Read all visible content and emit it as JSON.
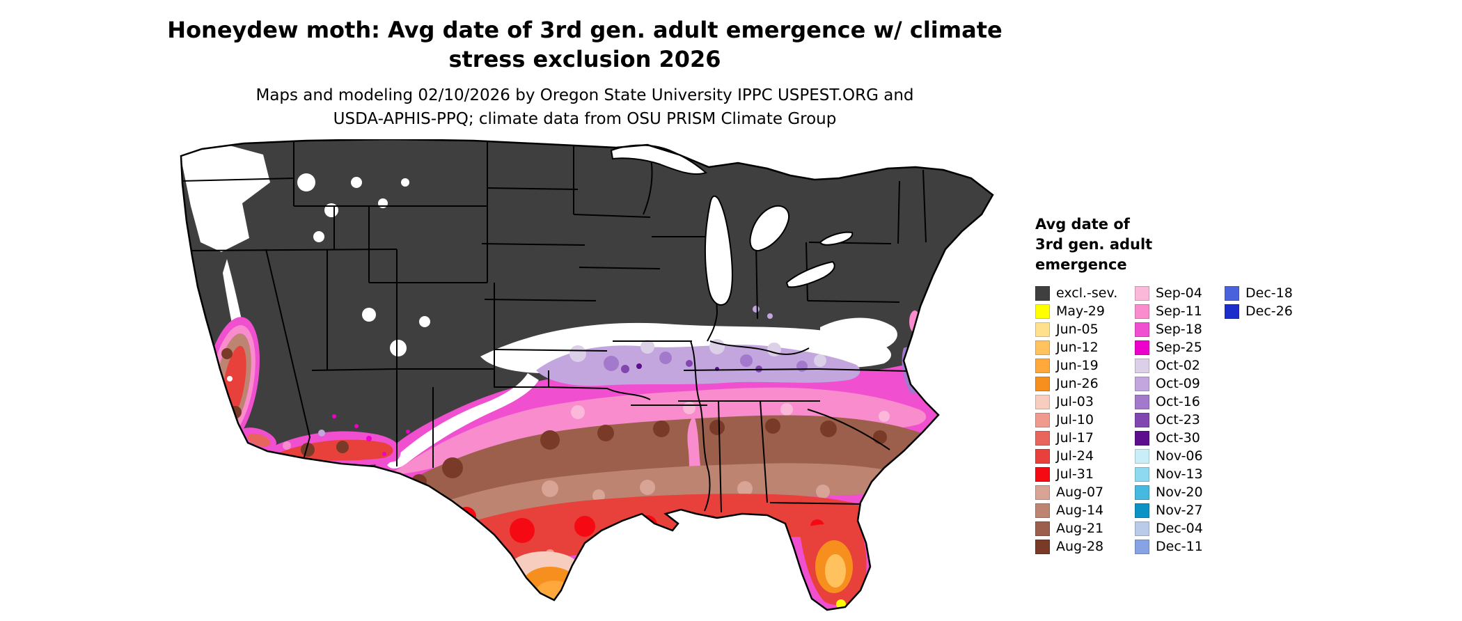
{
  "title": {
    "lines": [
      "Honeydew moth: Avg date of 3rd gen. adult emergence w/ climate",
      "stress exclusion 2026"
    ]
  },
  "subtitle": {
    "lines": [
      "Maps and modeling 02/10/2026 by Oregon State University IPPC USPEST.ORG and",
      "USDA-APHIS-PPQ; climate data from OSU PRISM Climate Group"
    ]
  },
  "legend": {
    "title_lines": [
      "Avg date of",
      "3rd gen. adult",
      "emergence"
    ],
    "columns": [
      [
        {
          "label": "excl.-sev.",
          "color": "#3f3f3f"
        },
        {
          "label": "May-29",
          "color": "#ffff00"
        },
        {
          "label": "Jun-05",
          "color": "#ffe08c"
        },
        {
          "label": "Jun-12",
          "color": "#ffc25e"
        },
        {
          "label": "Jun-19",
          "color": "#ffa93d"
        },
        {
          "label": "Jun-26",
          "color": "#f78f1e"
        },
        {
          "label": "Jul-03",
          "color": "#f6cdbf"
        },
        {
          "label": "Jul-10",
          "color": "#ef9a8d"
        },
        {
          "label": "Jul-17",
          "color": "#e8655e"
        },
        {
          "label": "Jul-24",
          "color": "#e8403a"
        },
        {
          "label": "Jul-31",
          "color": "#f50a14"
        },
        {
          "label": "Aug-07",
          "color": "#d8a495"
        },
        {
          "label": "Aug-14",
          "color": "#bd8472"
        },
        {
          "label": "Aug-21",
          "color": "#9c5f4b"
        },
        {
          "label": "Aug-28",
          "color": "#7a3a28"
        }
      ],
      [
        {
          "label": "Sep-04",
          "color": "#fcb8d9"
        },
        {
          "label": "Sep-11",
          "color": "#f98ccd"
        },
        {
          "label": "Sep-18",
          "color": "#f04fd0"
        },
        {
          "label": "Sep-25",
          "color": "#ee00cc"
        },
        {
          "label": "Oct-02",
          "color": "#dccfe8"
        },
        {
          "label": "Oct-09",
          "color": "#c3a6dd"
        },
        {
          "label": "Oct-16",
          "color": "#a379cb"
        },
        {
          "label": "Oct-23",
          "color": "#8146b0"
        },
        {
          "label": "Oct-30",
          "color": "#5c0e8f"
        },
        {
          "label": "Nov-06",
          "color": "#c9eef8"
        },
        {
          "label": "Nov-13",
          "color": "#8ed9ef"
        },
        {
          "label": "Nov-20",
          "color": "#45b9e0"
        },
        {
          "label": "Nov-27",
          "color": "#0a93c4"
        },
        {
          "label": "Dec-04",
          "color": "#b9cbe9"
        },
        {
          "label": "Dec-11",
          "color": "#86a3e3"
        }
      ],
      [
        {
          "label": "Dec-18",
          "color": "#4a63dd"
        },
        {
          "label": "Dec-26",
          "color": "#1b2ecc"
        }
      ]
    ]
  },
  "map": {
    "background_color": "#ffffff",
    "excluded_color": "#3f3f3f"
  }
}
